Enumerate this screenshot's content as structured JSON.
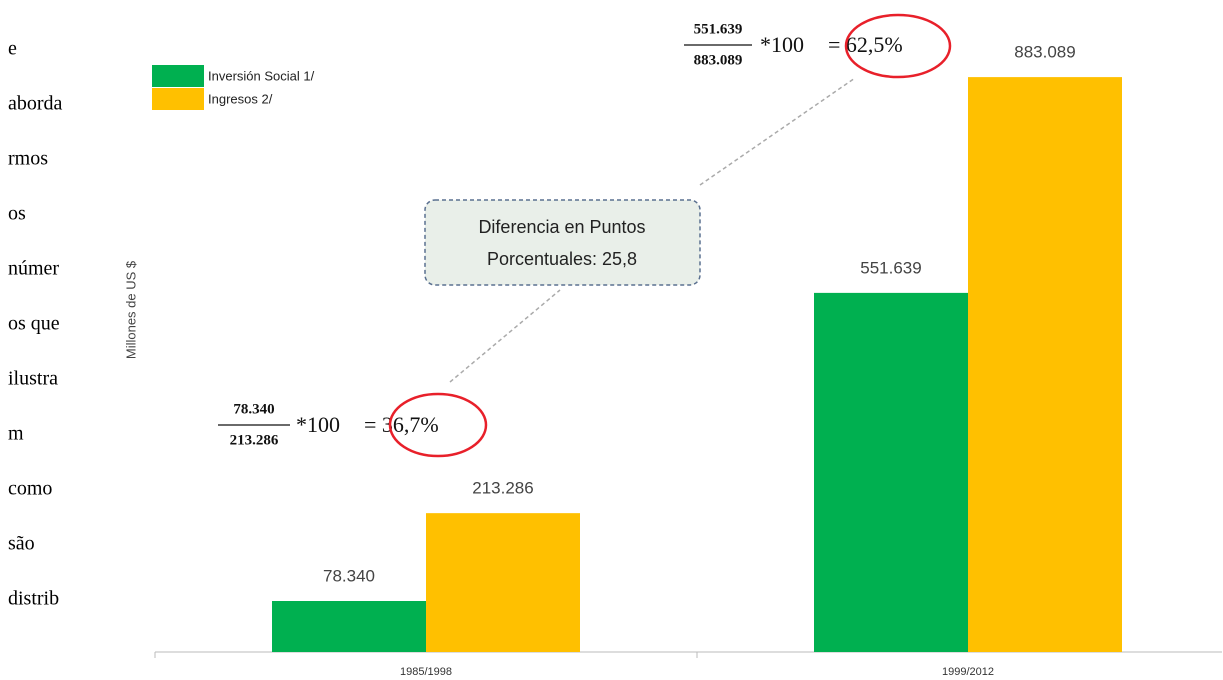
{
  "side_text": [
    "e",
    "aborda",
    "rmos",
    "os",
    "númer",
    "os que",
    "ilustra",
    "m",
    "como",
    "são",
    "distrib"
  ],
  "chart_data": {
    "type": "bar",
    "y_label": "Millones de US $",
    "categories": [
      "1985/1998",
      "1999/2012"
    ],
    "series": [
      {
        "name": "Inversión Social 1/",
        "color": "#00b050",
        "values": [
          78340,
          551639
        ],
        "value_labels": [
          "78.340",
          "551.639"
        ]
      },
      {
        "name": "Ingresos 2/",
        "color": "#ffc000",
        "values": [
          213286,
          883089
        ],
        "value_labels": [
          "213.286",
          "883.089"
        ]
      }
    ],
    "ylim": [
      0,
      1000000
    ],
    "legend": "top-left",
    "annotations": [
      {
        "numerator": "78.340",
        "denominator": "213.286",
        "factor": "*100",
        "result": "= 36,7%"
      },
      {
        "numerator": "551.639",
        "denominator": "883.089",
        "factor": "*100",
        "result": "= 62,5%"
      }
    ],
    "callout": [
      "Diferencia en Puntos",
      "Porcentuales: 25,8"
    ]
  }
}
